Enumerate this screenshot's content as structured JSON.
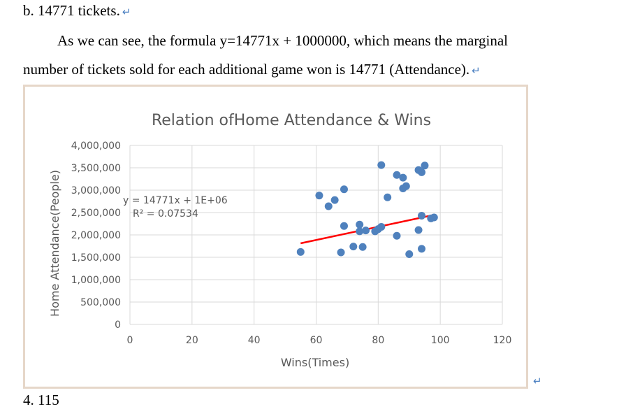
{
  "text": {
    "heading": "b. 14771 tickets.",
    "para_line1": "As we can see, the formula y=14771x + 1000000, which means the marginal",
    "para_line2": "number of tickets sold for each additional game won is 14771 (Attendance).",
    "return_mark": "↵",
    "cut_line": "4. 115"
  },
  "chart_data": {
    "type": "scatter",
    "title": "Relation ofHome Attendance & Wins",
    "xlabel": "Wins(Times)",
    "ylabel": "Home Attendance(People)",
    "xlim": [
      0,
      120
    ],
    "ylim": [
      0,
      4000000
    ],
    "x_ticks": [
      "0",
      "20",
      "40",
      "60",
      "80",
      "100",
      "120"
    ],
    "y_ticks": [
      "0",
      "500,000",
      "1,000,000",
      "1,500,000",
      "2,000,000",
      "2,500,000",
      "3,000,000",
      "3,500,000",
      "4,000,000"
    ],
    "grid": true,
    "colors": {
      "points": "#4f81bd",
      "trendline": "#ff0000",
      "grid": "#d9d9d9"
    },
    "trendline": {
      "slope": 14771,
      "intercept": 1000000,
      "x_range": [
        55,
        98
      ],
      "equation": "y = 14771x + 1E+06",
      "r_squared": "R² = 0.07534"
    },
    "points": [
      {
        "x": 55,
        "y": 1620000
      },
      {
        "x": 61,
        "y": 2880000
      },
      {
        "x": 64,
        "y": 2640000
      },
      {
        "x": 66,
        "y": 2780000
      },
      {
        "x": 69,
        "y": 3020000
      },
      {
        "x": 68,
        "y": 1610000
      },
      {
        "x": 69,
        "y": 2200000
      },
      {
        "x": 72,
        "y": 1740000
      },
      {
        "x": 74,
        "y": 2080000
      },
      {
        "x": 74,
        "y": 2230000
      },
      {
        "x": 75,
        "y": 1730000
      },
      {
        "x": 76,
        "y": 2100000
      },
      {
        "x": 79,
        "y": 2080000
      },
      {
        "x": 80,
        "y": 2130000
      },
      {
        "x": 81,
        "y": 3560000
      },
      {
        "x": 81,
        "y": 2180000
      },
      {
        "x": 83,
        "y": 2840000
      },
      {
        "x": 86,
        "y": 1980000
      },
      {
        "x": 86,
        "y": 3340000
      },
      {
        "x": 88,
        "y": 3280000
      },
      {
        "x": 88,
        "y": 3040000
      },
      {
        "x": 89,
        "y": 3090000
      },
      {
        "x": 90,
        "y": 1570000
      },
      {
        "x": 93,
        "y": 2110000
      },
      {
        "x": 93,
        "y": 3450000
      },
      {
        "x": 94,
        "y": 3400000
      },
      {
        "x": 94,
        "y": 1690000
      },
      {
        "x": 94,
        "y": 2430000
      },
      {
        "x": 95,
        "y": 3550000
      },
      {
        "x": 97,
        "y": 2370000
      },
      {
        "x": 98,
        "y": 2390000
      }
    ]
  }
}
